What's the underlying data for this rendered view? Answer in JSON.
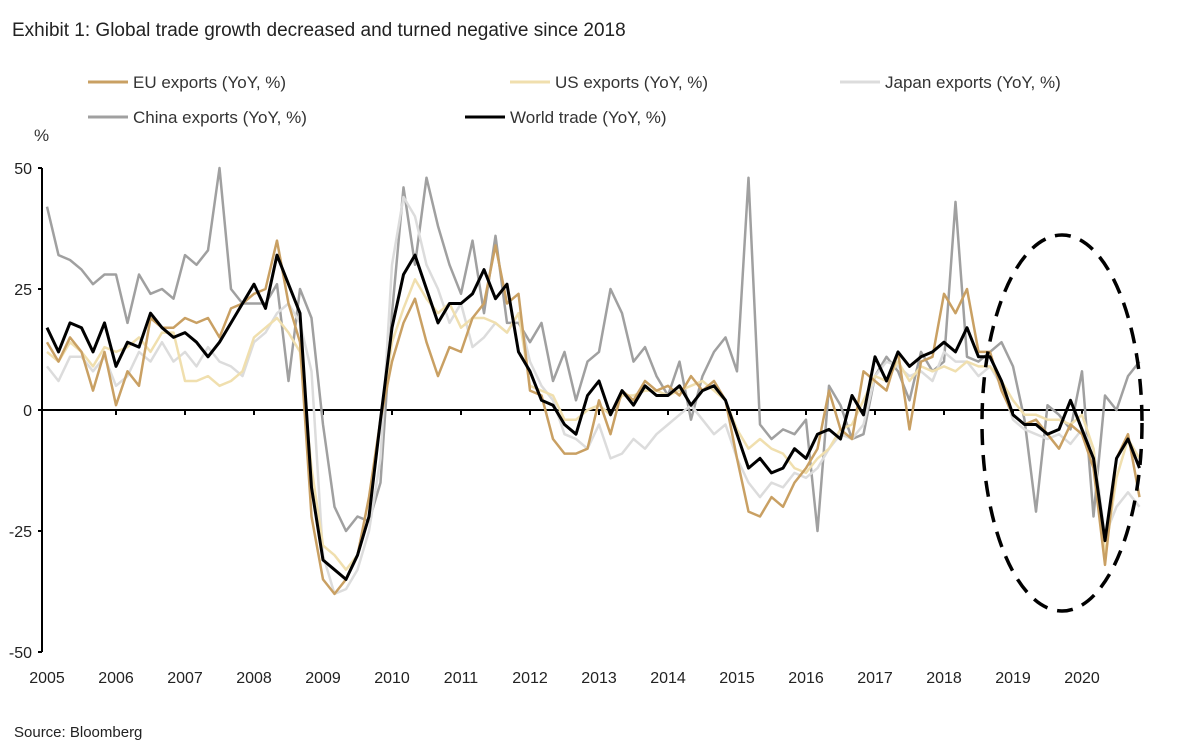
{
  "title": "Exhibit 1: Global trade growth decreased and turned negative since 2018",
  "source": "Source: Bloomberg",
  "chart_data": {
    "type": "line",
    "title": "Exhibit 1: Global trade growth decreased and turned negative since 2018",
    "ylabel": "%",
    "xlabel": "",
    "ylim": [
      -50,
      50
    ],
    "yticks": [
      "50",
      "25",
      "0",
      "-25",
      "-50"
    ],
    "xticks": [
      "2005",
      "2006",
      "2007",
      "2008",
      "2009",
      "2010",
      "2011",
      "2012",
      "2013",
      "2014",
      "2015",
      "2016",
      "2017",
      "2018",
      "2019",
      "2020"
    ],
    "x_start": "2005-01",
    "x_step": "2 months",
    "x_end": "2020-11",
    "grid": false,
    "legend_placement": "top",
    "annotation": "dashed ellipse highlighting 2018-2020",
    "series": [
      {
        "name": "EU exports (YoY, %)",
        "color": "#c9a063",
        "values": [
          14,
          10,
          15,
          12,
          4,
          12,
          1,
          8,
          5,
          19,
          17,
          17,
          19,
          18,
          19,
          15,
          21,
          22,
          24,
          25,
          35,
          22,
          14,
          -22,
          -35,
          -38,
          -35,
          -30,
          -18,
          -2,
          10,
          18,
          23,
          14,
          7,
          13,
          12,
          19,
          22,
          34,
          22,
          24,
          4,
          3,
          -6,
          -9,
          -9,
          -8,
          2,
          -5,
          4,
          2,
          6,
          4,
          5,
          3,
          7,
          4,
          6,
          2,
          -10,
          -21,
          -22,
          -18,
          -20,
          -15,
          -12,
          -8,
          4,
          -4,
          -6,
          8,
          6,
          4,
          12,
          -4,
          10,
          11,
          24,
          20,
          25,
          12,
          12,
          4,
          -1,
          -3,
          -2,
          -5,
          -8,
          -3,
          -5,
          -12,
          -32,
          -10,
          -5,
          -18
        ]
      },
      {
        "name": "US exports (YoY, %)",
        "color": "#f0dfae",
        "values": [
          12,
          10,
          14,
          12,
          9,
          13,
          12,
          13,
          15,
          12,
          16,
          16,
          6,
          6,
          7,
          5,
          6,
          8,
          15,
          17,
          19,
          16,
          12,
          -12,
          -28,
          -30,
          -33,
          -30,
          -22,
          -2,
          14,
          21,
          27,
          23,
          20,
          22,
          17,
          19,
          19,
          18,
          16,
          20,
          5,
          4,
          3,
          -2,
          -2,
          0,
          1,
          -1,
          3,
          3,
          4,
          4,
          3,
          4,
          5,
          6,
          4,
          2,
          -4,
          -8,
          -6,
          -8,
          -9,
          -12,
          -13,
          -10,
          -8,
          -4,
          -3,
          2,
          7,
          6,
          10,
          6,
          9,
          8,
          9,
          8,
          10,
          9,
          9,
          6,
          2,
          -1,
          -1,
          -2,
          -2,
          -3,
          -1,
          -8,
          -30,
          -14,
          -6,
          -10
        ]
      },
      {
        "name": "Japan exports (YoY, %)",
        "color": "#dcdcdc",
        "values": [
          9,
          6,
          11,
          11,
          8,
          11,
          5,
          7,
          12,
          10,
          14,
          10,
          12,
          9,
          13,
          10,
          9,
          7,
          14,
          16,
          20,
          22,
          18,
          8,
          -30,
          -38,
          -37,
          -33,
          -25,
          -10,
          30,
          44,
          40,
          30,
          25,
          18,
          22,
          13,
          15,
          18,
          16,
          20,
          10,
          5,
          2,
          -5,
          -6,
          -8,
          -3,
          -10,
          -9,
          -6,
          -8,
          -5,
          -3,
          -1,
          1,
          -2,
          -5,
          -3,
          -10,
          -15,
          -18,
          -15,
          -16,
          -13,
          -14,
          -12,
          -8,
          -5,
          -6,
          -3,
          7,
          10,
          9,
          7,
          8,
          6,
          12,
          10,
          10,
          7,
          9,
          5,
          -2,
          -4,
          -5,
          -6,
          -5,
          -7,
          -4,
          -8,
          -26,
          -20,
          -17,
          -20
        ]
      },
      {
        "name": "China exports (YoY, %)",
        "color": "#a0a0a0",
        "values": [
          42,
          32,
          31,
          29,
          26,
          28,
          28,
          18,
          28,
          24,
          25,
          23,
          32,
          30,
          33,
          50,
          25,
          22,
          22,
          22,
          26,
          6,
          25,
          19,
          -3,
          -20,
          -25,
          -22,
          -23,
          -15,
          20,
          46,
          30,
          48,
          38,
          30,
          24,
          35,
          20,
          36,
          18,
          18,
          14,
          18,
          6,
          12,
          2,
          10,
          12,
          25,
          20,
          10,
          13,
          7,
          3,
          10,
          -2,
          7,
          12,
          15,
          8,
          48,
          -3,
          -6,
          -4,
          -5,
          -2,
          -25,
          5,
          1,
          -6,
          -5,
          7,
          11,
          8,
          2,
          12,
          8,
          10,
          43,
          11,
          10,
          12,
          14,
          9,
          -2,
          -21,
          1,
          -1,
          -4,
          8,
          -22,
          3,
          0,
          7,
          10
        ]
      },
      {
        "name": "World trade (YoY, %)",
        "color": "#000000",
        "values": [
          17,
          12,
          18,
          17,
          12,
          18,
          9,
          14,
          13,
          20,
          17,
          15,
          16,
          14,
          11,
          14,
          18,
          22,
          26,
          21,
          32,
          26,
          20,
          -16,
          -31,
          -33,
          -35,
          -30,
          -22,
          -2,
          17,
          28,
          32,
          25,
          18,
          22,
          22,
          24,
          29,
          23,
          26,
          12,
          8,
          2,
          1,
          -3,
          -5,
          3,
          6,
          -1,
          4,
          1,
          5,
          3,
          3,
          5,
          1,
          4,
          5,
          2,
          -5,
          -12,
          -10,
          -13,
          -12,
          -8,
          -10,
          -5,
          -4,
          -6,
          3,
          -1,
          11,
          6,
          12,
          9,
          11,
          12,
          14,
          12,
          17,
          11,
          11,
          6,
          -1,
          -3,
          -3,
          -5,
          -4,
          2,
          -4,
          -10,
          -27,
          -10,
          -6,
          -12
        ]
      }
    ]
  }
}
